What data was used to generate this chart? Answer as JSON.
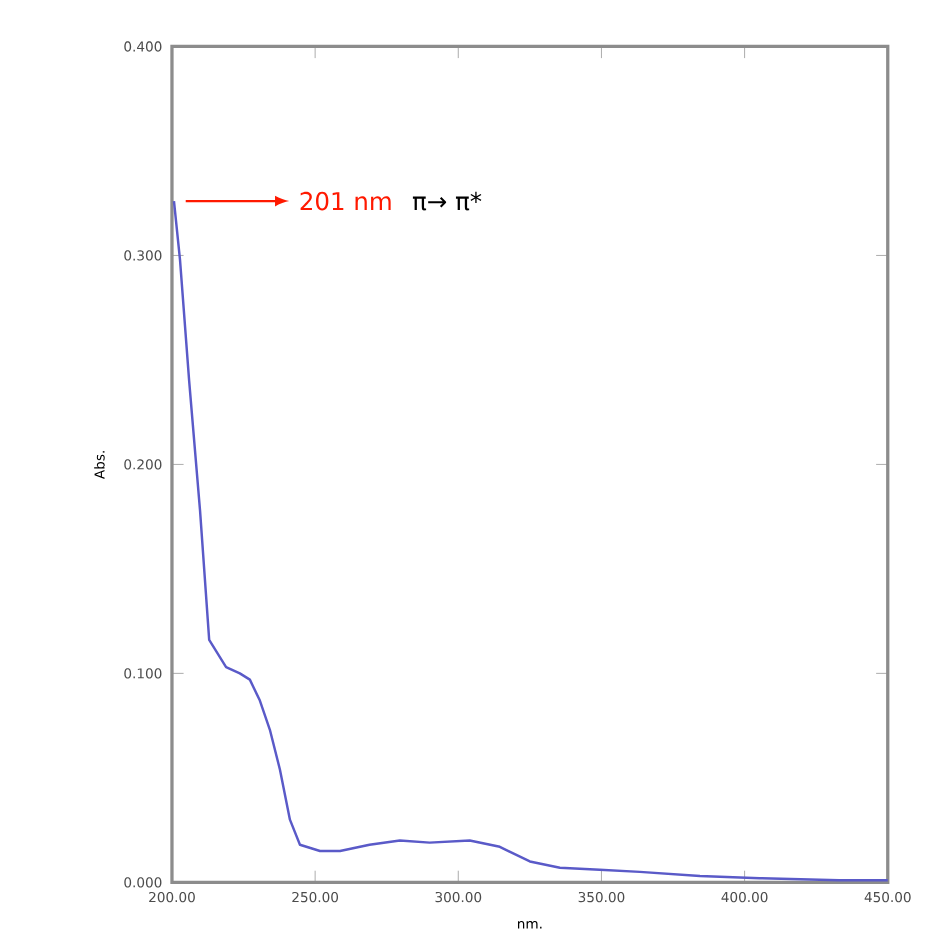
{
  "chart_data": {
    "type": "line",
    "xlabel": "nm.",
    "ylabel": "Abs.",
    "x": [
      200.7,
      202.8,
      206,
      209.8,
      213,
      218.9,
      223.7,
      227.2,
      230.7,
      234.2,
      237.7,
      241.2,
      244.7,
      251.7,
      258.7,
      269,
      279.6,
      290,
      304,
      314.5,
      325,
      335.5,
      349.4,
      363.4,
      384.4,
      405.3,
      433,
      450
    ],
    "series": [
      {
        "color": "#5a5ac8",
        "values": [
          0.326,
          0.298,
          0.24,
          0.178,
          0.116,
          0.103,
          0.1,
          0.097,
          0.087,
          0.073,
          0.054,
          0.03,
          0.018,
          0.015,
          0.015,
          0.018,
          0.02,
          0.019,
          0.02,
          0.017,
          0.01,
          0.007,
          0.006,
          0.005,
          0.003,
          0.002,
          0.001,
          0.001
        ]
      }
    ],
    "xlim": [
      200,
      450
    ],
    "xticks": [
      {
        "value": 200,
        "label": "200.00"
      },
      {
        "value": 250,
        "label": "250.00"
      },
      {
        "value": 300,
        "label": "300.00"
      },
      {
        "value": 350,
        "label": "350.00"
      },
      {
        "value": 400,
        "label": "400.00"
      },
      {
        "value": 450,
        "label": "450.00"
      }
    ],
    "ylim": [
      0,
      0.4
    ],
    "yticks": [
      {
        "value": 0,
        "label": "0.000"
      },
      {
        "value": 0.1,
        "label": "0.100"
      },
      {
        "value": 0.2,
        "label": "0.200"
      },
      {
        "value": 0.3,
        "label": "0.300"
      },
      {
        "value": 0.4,
        "label": "0.400"
      }
    ],
    "annotations": [
      {
        "text": "201 nm",
        "x": 201,
        "y": 0.326
      },
      "π→ π*"
    ],
    "grid": false,
    "marker": "none",
    "line_style": "solid"
  }
}
